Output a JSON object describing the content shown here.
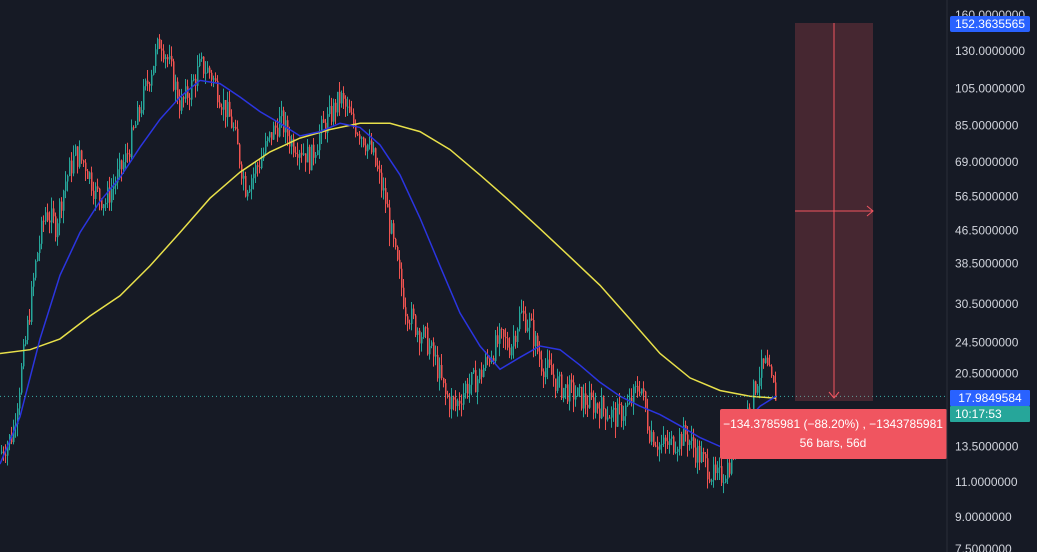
{
  "chart_data": {
    "type": "candlestick",
    "scale": "log",
    "ylim": [
      7.5,
      160
    ],
    "y_ticks": [
      {
        "value": 160,
        "label": "160.0000000"
      },
      {
        "value": 130,
        "label": "130.0000000"
      },
      {
        "value": 105,
        "label": "105.0000000"
      },
      {
        "value": 85,
        "label": "85.0000000"
      },
      {
        "value": 69,
        "label": "69.0000000"
      },
      {
        "value": 56.5,
        "label": "56.5000000"
      },
      {
        "value": 46.5,
        "label": "46.5000000"
      },
      {
        "value": 38.5,
        "label": "38.5000000"
      },
      {
        "value": 30.5,
        "label": "30.5000000"
      },
      {
        "value": 24.5,
        "label": "24.5000000"
      },
      {
        "value": 20.5,
        "label": "20.5000000"
      },
      {
        "value": 13.5,
        "label": "13.5000000"
      },
      {
        "value": 11,
        "label": "11.0000000"
      },
      {
        "value": 9,
        "label": "9.0000000"
      },
      {
        "value": 7.5,
        "label": "7.5000000"
      }
    ],
    "price_tags": [
      {
        "value": 152.3635565,
        "label": "152.3635565",
        "color": "#2962ff"
      },
      {
        "value": 17.9849584,
        "label": "17.9849584",
        "color": "#2962ff"
      }
    ],
    "countdown": {
      "label": "10:17:53",
      "color": "#26a69a"
    },
    "current_price": 17.9849584,
    "colors": {
      "up": "#26a69a",
      "down": "#ef5350",
      "ma_fast": "#2b35e0",
      "ma_slow": "#e8e04a"
    },
    "price_path": [
      [
        0,
        13.0
      ],
      [
        12,
        14.5
      ],
      [
        20,
        20.0
      ],
      [
        28,
        28.0
      ],
      [
        36,
        40.0
      ],
      [
        45,
        52.0
      ],
      [
        55,
        48.0
      ],
      [
        65,
        62.0
      ],
      [
        75,
        72.0
      ],
      [
        85,
        68.0
      ],
      [
        95,
        58.0
      ],
      [
        105,
        55.0
      ],
      [
        115,
        62.0
      ],
      [
        125,
        70.0
      ],
      [
        135,
        85.0
      ],
      [
        145,
        105.0
      ],
      [
        152,
        120.0
      ],
      [
        160,
        140.0
      ],
      [
        170,
        118.0
      ],
      [
        180,
        95.0
      ],
      [
        190,
        105.0
      ],
      [
        200,
        120.0
      ],
      [
        210,
        115.0
      ],
      [
        220,
        100.0
      ],
      [
        232,
        85.0
      ],
      [
        245,
        60.0
      ],
      [
        258,
        68.0
      ],
      [
        270,
        80.0
      ],
      [
        280,
        88.0
      ],
      [
        290,
        78.0
      ],
      [
        300,
        75.0
      ],
      [
        310,
        70.0
      ],
      [
        320,
        82.0
      ],
      [
        330,
        90.0
      ],
      [
        340,
        100.0
      ],
      [
        350,
        88.0
      ],
      [
        360,
        82.0
      ],
      [
        372,
        72.0
      ],
      [
        385,
        55.0
      ],
      [
        395,
        40.0
      ],
      [
        405,
        30.0
      ],
      [
        415,
        27.0
      ],
      [
        425,
        25.0
      ],
      [
        435,
        22.0
      ],
      [
        445,
        18.0
      ],
      [
        455,
        17.0
      ],
      [
        465,
        19.0
      ],
      [
        478,
        20.0
      ],
      [
        490,
        23.0
      ],
      [
        500,
        25.0
      ],
      [
        510,
        24.0
      ],
      [
        520,
        29.0
      ],
      [
        530,
        27.0
      ],
      [
        540,
        22.0
      ],
      [
        550,
        20.5
      ],
      [
        560,
        19.0
      ],
      [
        570,
        18.5
      ],
      [
        585,
        17.5
      ],
      [
        600,
        17.0
      ],
      [
        615,
        16.0
      ],
      [
        628,
        17.0
      ],
      [
        640,
        19.5
      ],
      [
        648,
        15.0
      ],
      [
        660,
        13.5
      ],
      [
        672,
        13.8
      ],
      [
        685,
        14.5
      ],
      [
        695,
        13.2
      ],
      [
        705,
        12.2
      ],
      [
        715,
        11.2
      ],
      [
        722,
        11.5
      ],
      [
        730,
        12.5
      ],
      [
        738,
        14.5
      ],
      [
        745,
        16.0
      ],
      [
        752,
        18.0
      ],
      [
        758,
        20.5
      ],
      [
        765,
        21.5
      ],
      [
        772,
        19.0
      ],
      [
        776,
        18.0
      ]
    ],
    "ma_fast": [
      [
        0,
        12.2
      ],
      [
        20,
        16.0
      ],
      [
        40,
        25.0
      ],
      [
        60,
        36.0
      ],
      [
        80,
        46.0
      ],
      [
        100,
        55.0
      ],
      [
        120,
        63.0
      ],
      [
        140,
        75.0
      ],
      [
        160,
        88.0
      ],
      [
        180,
        100.0
      ],
      [
        200,
        110.0
      ],
      [
        220,
        108.0
      ],
      [
        240,
        100.0
      ],
      [
        260,
        92.0
      ],
      [
        280,
        86.0
      ],
      [
        300,
        80.0
      ],
      [
        320,
        82.0
      ],
      [
        340,
        86.0
      ],
      [
        360,
        84.0
      ],
      [
        380,
        76.0
      ],
      [
        400,
        64.0
      ],
      [
        420,
        50.0
      ],
      [
        440,
        38.0
      ],
      [
        460,
        29.0
      ],
      [
        480,
        24.0
      ],
      [
        500,
        21.0
      ],
      [
        520,
        22.5
      ],
      [
        540,
        24.0
      ],
      [
        560,
        23.5
      ],
      [
        580,
        21.5
      ],
      [
        600,
        19.5
      ],
      [
        620,
        18.0
      ],
      [
        640,
        17.0
      ],
      [
        660,
        16.2
      ],
      [
        680,
        15.2
      ],
      [
        700,
        14.2
      ],
      [
        720,
        13.5
      ],
      [
        740,
        15.0
      ],
      [
        760,
        17.0
      ],
      [
        776,
        18.0
      ]
    ],
    "ma_slow": [
      [
        0,
        23.0
      ],
      [
        30,
        23.5
      ],
      [
        60,
        25.0
      ],
      [
        90,
        28.5
      ],
      [
        120,
        32.0
      ],
      [
        150,
        38.0
      ],
      [
        180,
        46.0
      ],
      [
        210,
        56.0
      ],
      [
        240,
        65.0
      ],
      [
        270,
        73.0
      ],
      [
        300,
        79.0
      ],
      [
        330,
        83.0
      ],
      [
        360,
        86.0
      ],
      [
        390,
        86.0
      ],
      [
        420,
        82.0
      ],
      [
        450,
        74.0
      ],
      [
        480,
        64.0
      ],
      [
        510,
        55.0
      ],
      [
        540,
        47.0
      ],
      [
        570,
        40.0
      ],
      [
        600,
        34.0
      ],
      [
        630,
        28.0
      ],
      [
        660,
        23.0
      ],
      [
        690,
        20.0
      ],
      [
        720,
        18.6
      ],
      [
        750,
        18.0
      ],
      [
        776,
        17.8
      ]
    ],
    "measure": {
      "from_value": 152.3635565,
      "to_value": 17.9849584,
      "label_line1": "−134.3785981 (−88.20%) , −1343785981",
      "label_line2": "56 bars, 56d",
      "color": "#f05560"
    }
  }
}
